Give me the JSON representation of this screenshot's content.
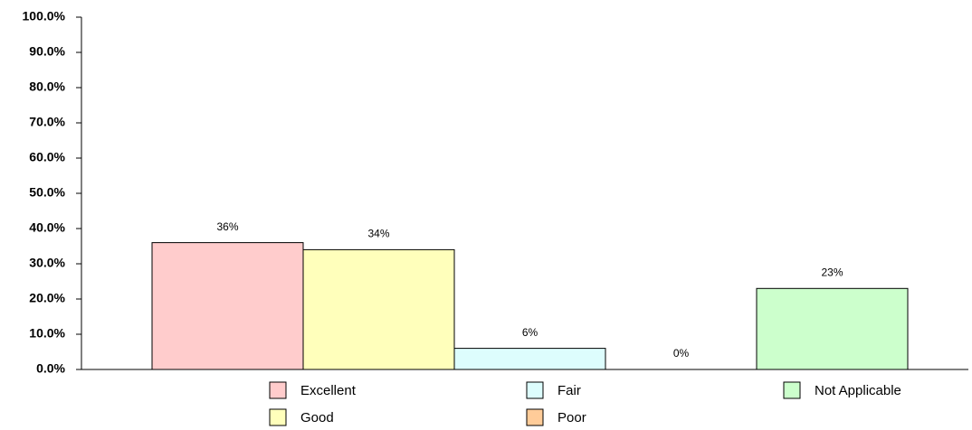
{
  "chart_data": {
    "type": "bar",
    "categories": [
      "Excellent",
      "Good",
      "Fair",
      "Poor",
      "Not Applicable"
    ],
    "values": [
      36,
      34,
      6,
      0,
      23
    ],
    "value_labels": [
      "36%",
      "34%",
      "6%",
      "0%",
      "23%"
    ],
    "colors": [
      "#ffcccc",
      "#ffffbb",
      "#ddfdfd",
      "#ffcc99",
      "#ccffcc"
    ],
    "ylim": [
      0,
      100
    ],
    "yticks": [
      {
        "value": 0,
        "label": "0.0%"
      },
      {
        "value": 10,
        "label": "10.0%"
      },
      {
        "value": 20,
        "label": "20.0%"
      },
      {
        "value": 30,
        "label": "30.0%"
      },
      {
        "value": 40,
        "label": "40.0%"
      },
      {
        "value": 50,
        "label": "50.0%"
      },
      {
        "value": 60,
        "label": "60.0%"
      },
      {
        "value": 70,
        "label": "70.0%"
      },
      {
        "value": 80,
        "label": "80.0%"
      },
      {
        "value": 90,
        "label": "90.0%"
      },
      {
        "value": 100,
        "label": "100.0%"
      }
    ],
    "legend": "bottom"
  }
}
